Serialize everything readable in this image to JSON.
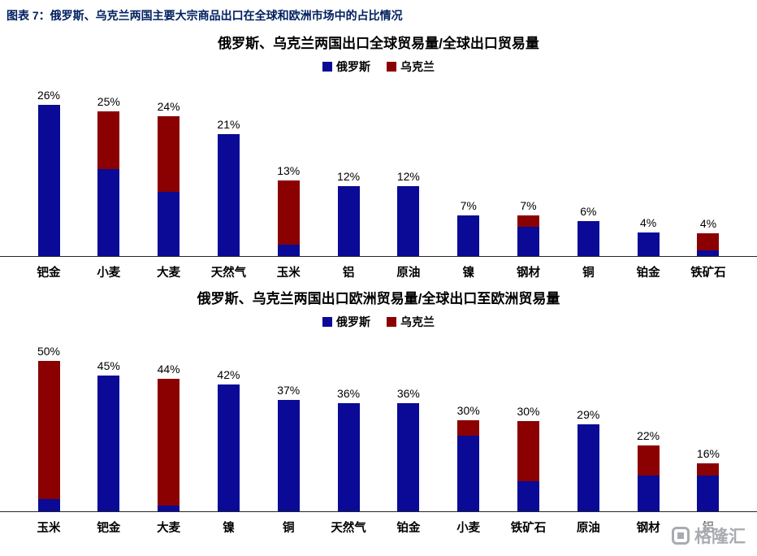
{
  "page": {
    "header": "图表 7：俄罗斯、乌克兰两国主要大宗商品出口在全球和欧洲市场中的占比情况",
    "watermark": "格隆汇"
  },
  "colors": {
    "russia": "#0a0a96",
    "ukraine": "#8b0000"
  },
  "chart_data": [
    {
      "type": "bar",
      "stacked": true,
      "title": "俄罗斯、乌克兰两国出口全球贸易量/全球出口贸易量",
      "legend_position": "top",
      "grid": false,
      "ylim": [
        0,
        28
      ],
      "categories": [
        "钯金",
        "小麦",
        "大麦",
        "天然气",
        "玉米",
        "铝",
        "原油",
        "镍",
        "钢材",
        "铜",
        "铂金",
        "铁矿石"
      ],
      "series": [
        {
          "name": "俄罗斯",
          "color": "#0a0a96",
          "values": [
            26,
            15,
            11,
            21,
            2,
            12,
            12,
            7,
            5,
            6,
            4,
            1
          ]
        },
        {
          "name": "乌克兰",
          "color": "#8b0000",
          "values": [
            0,
            10,
            13,
            0,
            11,
            0,
            0,
            0,
            2,
            0,
            0,
            3
          ]
        }
      ],
      "totals_labels": [
        "26%",
        "25%",
        "24%",
        "21%",
        "13%",
        "12%",
        "12%",
        "7%",
        "7%",
        "6%",
        "4%",
        "4%"
      ]
    },
    {
      "type": "bar",
      "stacked": true,
      "title": "俄罗斯、乌克兰两国出口欧洲贸易量/全球出口至欧洲贸易量",
      "legend_position": "top",
      "grid": false,
      "ylim": [
        0,
        54
      ],
      "categories": [
        "玉米",
        "钯金",
        "大麦",
        "镍",
        "铜",
        "天然气",
        "铂金",
        "小麦",
        "铁矿石",
        "原油",
        "钢材",
        "铝"
      ],
      "series": [
        {
          "name": "俄罗斯",
          "color": "#0a0a96",
          "values": [
            4,
            45,
            2,
            42,
            37,
            36,
            36,
            25,
            10,
            29,
            12,
            12
          ]
        },
        {
          "name": "乌克兰",
          "color": "#8b0000",
          "values": [
            46,
            0,
            42,
            0,
            0,
            0,
            0,
            5,
            20,
            0,
            10,
            4
          ]
        }
      ],
      "totals_labels": [
        "50%",
        "45%",
        "44%",
        "42%",
        "37%",
        "36%",
        "36%",
        "30%",
        "30%",
        "29%",
        "22%",
        "16%"
      ]
    }
  ]
}
